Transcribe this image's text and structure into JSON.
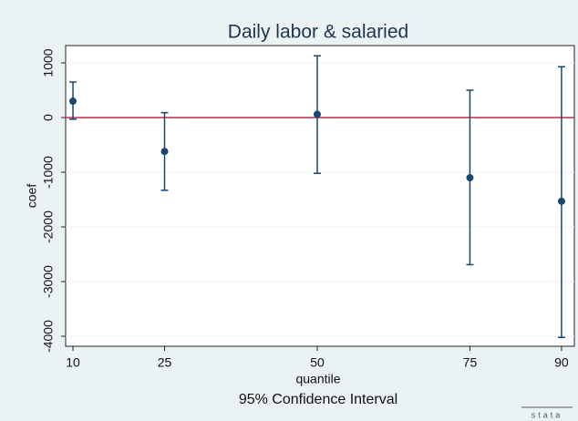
{
  "chart_data": {
    "type": "errorbar",
    "title": "Daily labor & salaried",
    "xlabel": "quantile",
    "ylabel": "coef",
    "note": "95% Confidence Interval",
    "logo": "stata",
    "x": [
      10,
      25,
      50,
      75,
      90
    ],
    "values": [
      300,
      -620,
      60,
      -1100,
      -1530
    ],
    "ci_low": [
      -30,
      -1330,
      -1020,
      -2690,
      -4020
    ],
    "ci_high": [
      650,
      90,
      1130,
      500,
      930
    ],
    "color": "#1a476f",
    "refline": 0,
    "refline_color": "#b0344a",
    "xlim": [
      8.8,
      92.1
    ],
    "xticks": [
      10,
      25,
      50,
      75,
      90
    ],
    "ylim": [
      -4183,
      1317
    ],
    "yticks": [
      -4000,
      -3000,
      -2000,
      -1000,
      0,
      1000
    ],
    "grid": true
  }
}
